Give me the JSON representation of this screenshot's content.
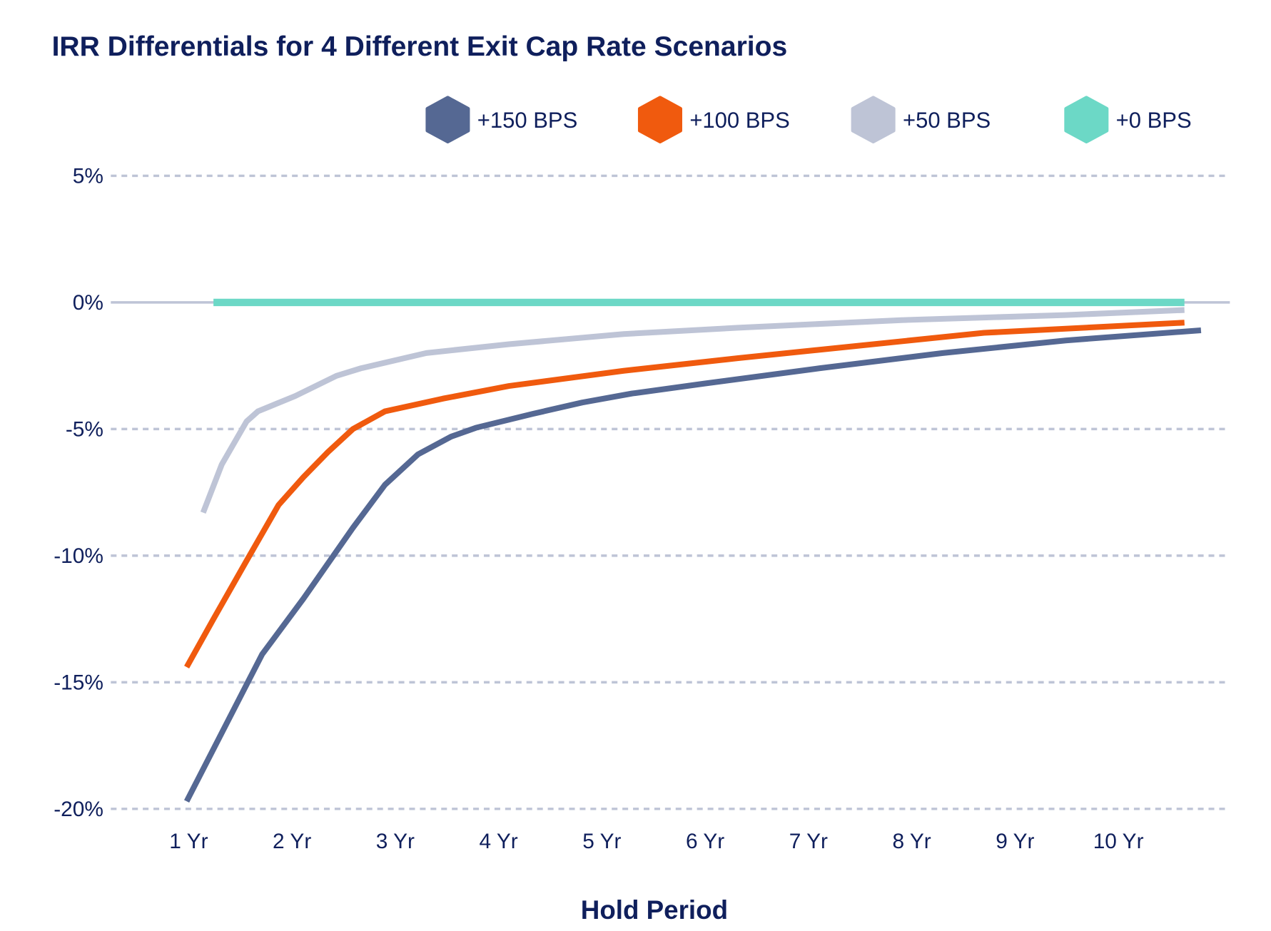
{
  "chart_data": {
    "type": "line",
    "title": "IRR Differentials for 4 Different Exit Cap Rate Scenarios",
    "xlabel": "Hold Period",
    "ylabel": "",
    "x_ticks": [
      1,
      2,
      3,
      4,
      5,
      6,
      7,
      8,
      9,
      10
    ],
    "x_tick_labels": [
      "1 Yr",
      "2 Yr",
      "3 Yr",
      "4 Yr",
      "5 Yr",
      "6 Yr",
      "7 Yr",
      "8 Yr",
      "9 Yr",
      "10 Yr"
    ],
    "y_ticks": [
      5,
      0,
      -5,
      -10,
      -15,
      -20
    ],
    "y_tick_labels": [
      "5%",
      "0%",
      "-5%",
      "-10%",
      "-15%",
      "-20%"
    ],
    "xlim": [
      0.25,
      11.08
    ],
    "ylim": [
      -20,
      5
    ],
    "grid": "horizontal dashed",
    "legend_position": "top-right",
    "series": [
      {
        "name": "+150 BPS",
        "color": "#556893",
        "x": [
          0.98,
          1.71,
          2.11,
          2.59,
          2.9,
          3.22,
          3.54,
          3.78,
          4.33,
          4.81,
          5.29,
          6.0,
          7.11,
          8.3,
          9.49,
          10.8
        ],
        "y": [
          -19.7,
          -13.9,
          -11.7,
          -8.9,
          -7.2,
          -6.0,
          -5.3,
          -4.95,
          -4.4,
          -3.95,
          -3.6,
          -3.2,
          -2.6,
          -2.0,
          -1.5,
          -1.1
        ]
      },
      {
        "name": "+100 BPS",
        "color": "#f05a0e",
        "x": [
          0.98,
          1.24,
          1.56,
          1.87,
          2.11,
          2.35,
          2.59,
          2.9,
          3.46,
          4.1,
          5.21,
          6.32,
          7.51,
          8.7,
          10.64
        ],
        "y": [
          -14.4,
          -12.5,
          -10.2,
          -8.0,
          -6.9,
          -5.9,
          -5.0,
          -4.3,
          -3.8,
          -3.3,
          -2.7,
          -2.2,
          -1.7,
          -1.2,
          -0.8
        ]
      },
      {
        "name": "+50 BPS",
        "color": "#bec4d6",
        "x": [
          1.14,
          1.32,
          1.56,
          1.67,
          2.03,
          2.43,
          2.67,
          3.3,
          4.1,
          5.21,
          6.32,
          7.9,
          9.49,
          10.64
        ],
        "y": [
          -8.3,
          -6.4,
          -4.7,
          -4.3,
          -3.7,
          -2.9,
          -2.6,
          -2.0,
          -1.65,
          -1.25,
          -1.0,
          -0.7,
          -0.5,
          -0.3
        ]
      },
      {
        "name": "+0 BPS",
        "color": "#6cd8c6",
        "x": [
          1.24,
          10.64
        ],
        "y": [
          0,
          0
        ]
      }
    ]
  }
}
